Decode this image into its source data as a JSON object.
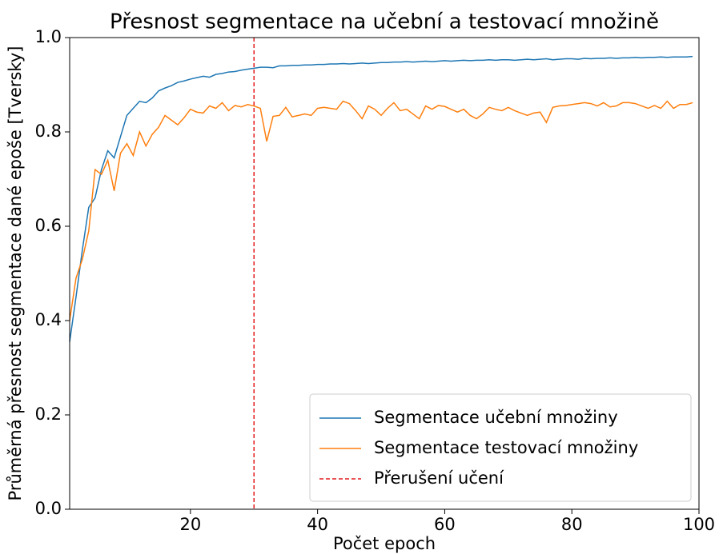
{
  "chart_data": {
    "type": "line",
    "title": "Přesnost segmentace na učební a testovací množině",
    "xlabel": "Počet epoch",
    "ylabel": "Průměrná přesnost segmentace dané epoše [Tversky]",
    "x": [
      1,
      2,
      3,
      4,
      5,
      6,
      7,
      8,
      9,
      10,
      11,
      12,
      13,
      14,
      15,
      16,
      17,
      18,
      19,
      20,
      21,
      22,
      23,
      24,
      25,
      26,
      27,
      28,
      29,
      30,
      31,
      32,
      33,
      34,
      35,
      36,
      37,
      38,
      39,
      40,
      41,
      42,
      43,
      44,
      45,
      46,
      47,
      48,
      49,
      50,
      51,
      52,
      53,
      54,
      55,
      56,
      57,
      58,
      59,
      60,
      61,
      62,
      63,
      64,
      65,
      66,
      67,
      68,
      69,
      70,
      71,
      72,
      73,
      74,
      75,
      76,
      77,
      78,
      79,
      80,
      81,
      82,
      83,
      84,
      85,
      86,
      87,
      88,
      89,
      90,
      91,
      92,
      93,
      94,
      95,
      96,
      97,
      98,
      99
    ],
    "series": [
      {
        "name": "Segmentace učební množiny",
        "color": "#1f77b4",
        "values": [
          0.355,
          0.45,
          0.55,
          0.64,
          0.66,
          0.72,
          0.76,
          0.745,
          0.79,
          0.835,
          0.85,
          0.865,
          0.862,
          0.872,
          0.887,
          0.893,
          0.898,
          0.905,
          0.908,
          0.912,
          0.915,
          0.918,
          0.916,
          0.922,
          0.924,
          0.927,
          0.928,
          0.931,
          0.933,
          0.935,
          0.937,
          0.937,
          0.936,
          0.94,
          0.94,
          0.941,
          0.941,
          0.942,
          0.942,
          0.943,
          0.943,
          0.944,
          0.944,
          0.945,
          0.944,
          0.945,
          0.946,
          0.945,
          0.946,
          0.947,
          0.947,
          0.948,
          0.948,
          0.949,
          0.948,
          0.949,
          0.95,
          0.949,
          0.95,
          0.951,
          0.95,
          0.951,
          0.952,
          0.951,
          0.952,
          0.952,
          0.953,
          0.952,
          0.953,
          0.953,
          0.952,
          0.953,
          0.954,
          0.953,
          0.954,
          0.955,
          0.953,
          0.954,
          0.955,
          0.955,
          0.954,
          0.956,
          0.955,
          0.956,
          0.956,
          0.957,
          0.956,
          0.957,
          0.957,
          0.958,
          0.957,
          0.958,
          0.958,
          0.959,
          0.958,
          0.959,
          0.959,
          0.959,
          0.96
        ]
      },
      {
        "name": "Segmentace testovací množiny",
        "color": "#ff7f0e",
        "values": [
          0.4,
          0.49,
          0.53,
          0.59,
          0.72,
          0.71,
          0.74,
          0.675,
          0.755,
          0.775,
          0.75,
          0.8,
          0.77,
          0.795,
          0.81,
          0.835,
          0.825,
          0.815,
          0.83,
          0.848,
          0.842,
          0.84,
          0.855,
          0.85,
          0.862,
          0.845,
          0.856,
          0.853,
          0.858,
          0.855,
          0.85,
          0.78,
          0.833,
          0.835,
          0.852,
          0.832,
          0.835,
          0.838,
          0.835,
          0.85,
          0.852,
          0.85,
          0.848,
          0.865,
          0.86,
          0.845,
          0.828,
          0.855,
          0.848,
          0.835,
          0.85,
          0.862,
          0.845,
          0.848,
          0.838,
          0.828,
          0.855,
          0.848,
          0.856,
          0.854,
          0.848,
          0.842,
          0.848,
          0.835,
          0.828,
          0.838,
          0.852,
          0.848,
          0.845,
          0.852,
          0.845,
          0.84,
          0.835,
          0.84,
          0.842,
          0.82,
          0.852,
          0.855,
          0.856,
          0.858,
          0.86,
          0.862,
          0.86,
          0.855,
          0.862,
          0.853,
          0.855,
          0.862,
          0.862,
          0.86,
          0.855,
          0.85,
          0.856,
          0.85,
          0.865,
          0.85,
          0.858,
          0.858,
          0.862
        ]
      }
    ],
    "vlines": [
      {
        "x": 30,
        "name": "Přerušení učení",
        "color": "#e41a1c"
      }
    ],
    "xlim": [
      1,
      100
    ],
    "xticks": [
      20,
      40,
      60,
      80,
      100
    ],
    "ylim": [
      0,
      1
    ],
    "yticks": [
      {
        "value": 0,
        "label": "0.0"
      },
      0.2,
      0.4,
      0.6,
      0.8,
      {
        "value": 1,
        "label": "1.0"
      }
    ],
    "legend": "lower right"
  }
}
